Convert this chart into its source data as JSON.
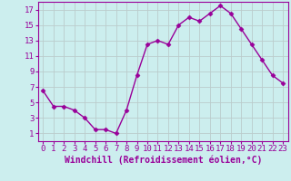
{
  "x": [
    0,
    1,
    2,
    3,
    4,
    5,
    6,
    7,
    8,
    9,
    10,
    11,
    12,
    13,
    14,
    15,
    16,
    17,
    18,
    19,
    20,
    21,
    22,
    23
  ],
  "y": [
    6.5,
    4.5,
    4.5,
    4.0,
    3.0,
    1.5,
    1.5,
    1.0,
    4.0,
    8.5,
    12.5,
    13.0,
    12.5,
    15.0,
    16.0,
    15.5,
    16.5,
    17.5,
    16.5,
    14.5,
    12.5,
    10.5,
    8.5,
    7.5
  ],
  "line_color": "#990099",
  "marker": "D",
  "marker_size": 2.5,
  "line_width": 1.0,
  "bg_color": "#cceeee",
  "grid_color": "#bbcccc",
  "xlabel": "Windchill (Refroidissement éolien,°C)",
  "xlabel_color": "#990099",
  "tick_color": "#990099",
  "spine_color": "#990099",
  "xlim": [
    -0.5,
    23.5
  ],
  "ylim": [
    0,
    18
  ],
  "yticks": [
    1,
    3,
    5,
    7,
    9,
    11,
    13,
    15,
    17
  ],
  "xticks": [
    0,
    1,
    2,
    3,
    4,
    5,
    6,
    7,
    8,
    9,
    10,
    11,
    12,
    13,
    14,
    15,
    16,
    17,
    18,
    19,
    20,
    21,
    22,
    23
  ],
  "xlabel_fontsize": 7,
  "tick_fontsize": 6.5
}
